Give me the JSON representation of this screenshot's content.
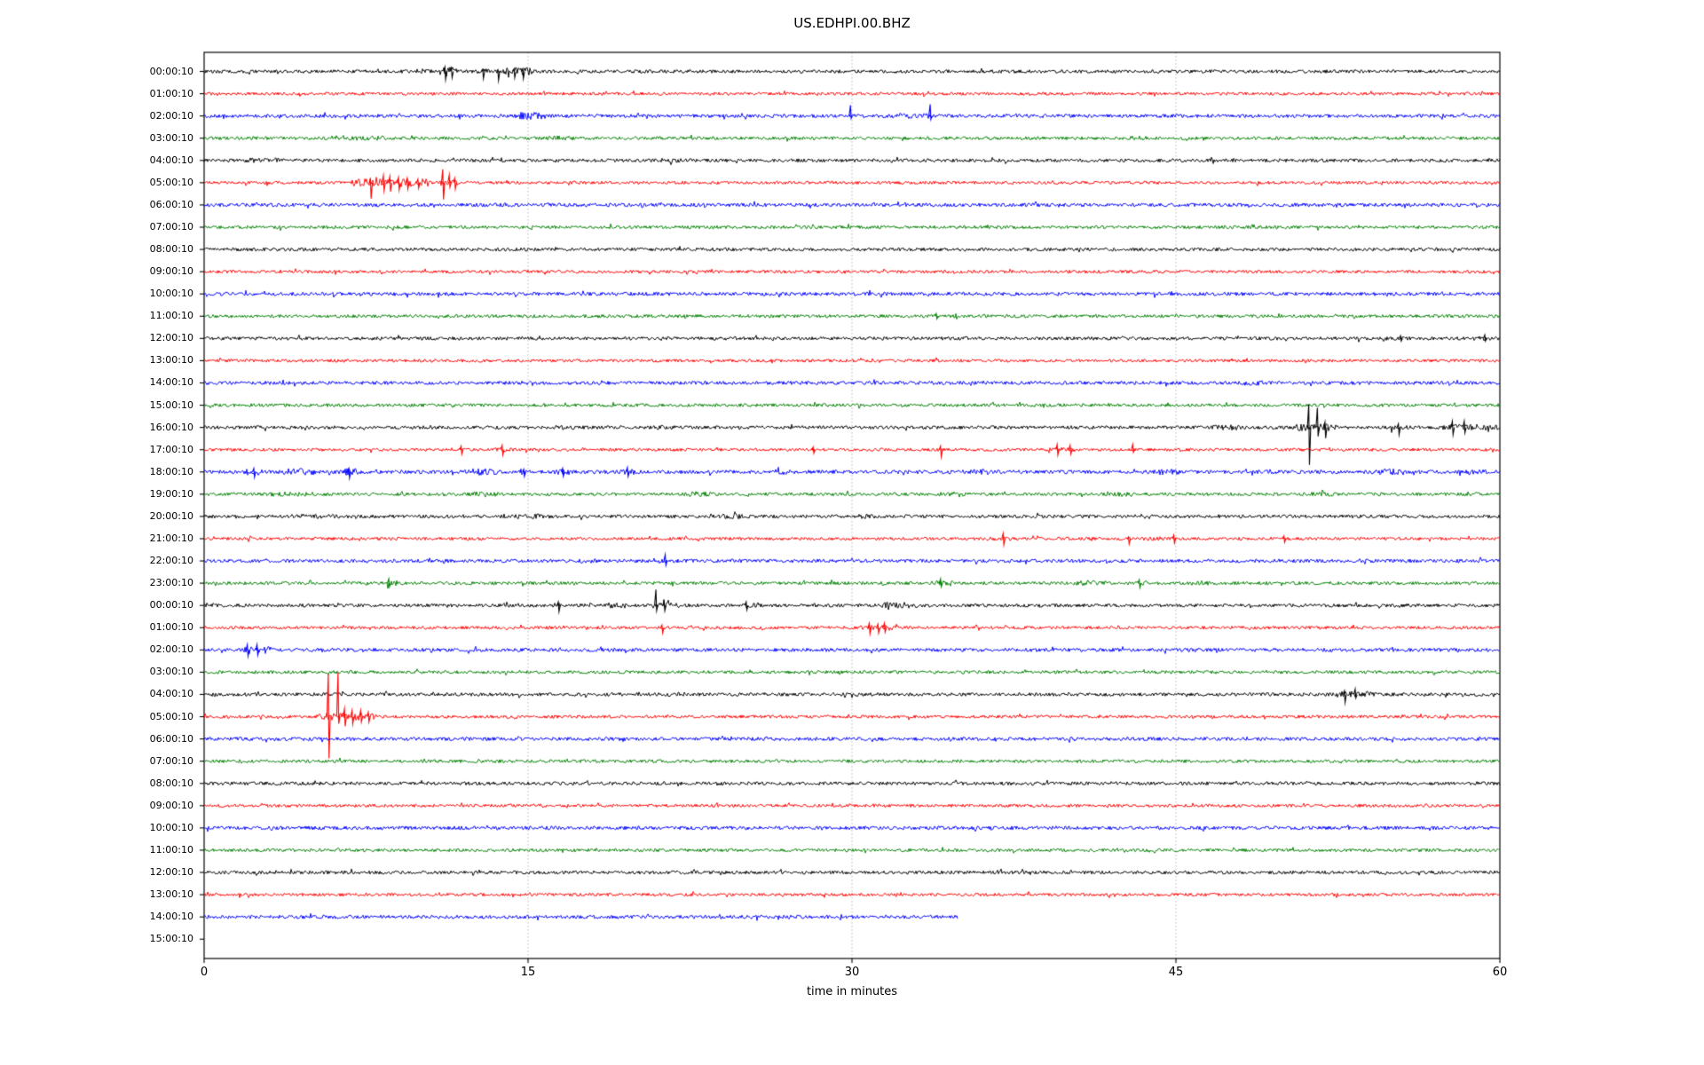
{
  "title": "US.EDHPI.00.BHZ",
  "xlabel": "time in minutes",
  "chart_data": {
    "type": "line",
    "subtype": "seismogram-dayplot",
    "title": "US.EDHPI.00.BHZ",
    "xlabel": "time in minutes",
    "x_range": [
      0,
      60
    ],
    "x_ticks": [
      0,
      15,
      30,
      45,
      60
    ],
    "gridlines_at": [
      15,
      30,
      45
    ],
    "grid_style": "dotted-vertical",
    "legend": "none",
    "color_cycle": [
      "#000000",
      "#ff0000",
      "#0000ff",
      "#008000"
    ],
    "frame_color": "#000000",
    "grid_color": "#b0b0b0",
    "rows": [
      {
        "label": "00:00:10",
        "color": "#000000",
        "noise": 1.9,
        "end": 60,
        "bursts": [
          [
            9.8,
            10.2,
            1.6
          ],
          [
            11.0,
            11.6,
            2.6
          ],
          [
            12.7,
            13.1,
            1.8
          ],
          [
            14.0,
            15.1,
            2.2
          ]
        ],
        "spikes": [
          [
            11.15,
            5,
            9
          ],
          [
            11.45,
            4,
            7
          ],
          [
            12.9,
            2,
            8
          ],
          [
            13.6,
            2,
            10
          ],
          [
            14.35,
            3,
            7
          ],
          [
            14.75,
            3,
            8
          ]
        ]
      },
      {
        "label": "01:00:10",
        "color": "#ff0000",
        "noise": 1.7,
        "end": 60,
        "bursts": [],
        "spikes": []
      },
      {
        "label": "02:00:10",
        "color": "#0000ff",
        "noise": 2.0,
        "end": 60,
        "bursts": [
          [
            14.5,
            15.7,
            2.2
          ],
          [
            31.8,
            33.5,
            1.5
          ]
        ],
        "spikes": [
          [
            29.93,
            12,
            3
          ],
          [
            33.62,
            13,
            4
          ]
        ]
      },
      {
        "label": "03:00:10",
        "color": "#008000",
        "noise": 1.8,
        "end": 60,
        "bursts": [
          [
            6.8,
            8.3,
            1.5
          ],
          [
            16.0,
            17.0,
            1.5
          ],
          [
            43.0,
            43.8,
            1.4
          ],
          [
            52.9,
            53.6,
            1.4
          ]
        ],
        "spikes": []
      },
      {
        "label": "04:00:10",
        "color": "#000000",
        "noise": 1.9,
        "end": 60,
        "bursts": [
          [
            1.9,
            3.4,
            1.5
          ],
          [
            21.0,
            22.0,
            1.3
          ]
        ],
        "spikes": []
      },
      {
        "label": "05:00:10",
        "color": "#ff0000",
        "noise": 1.7,
        "end": 60,
        "bursts": [
          [
            6.9,
            10.4,
            2.6
          ],
          [
            10.9,
            11.7,
            2.0
          ]
        ],
        "spikes": [
          [
            7.7,
            4,
            18
          ],
          [
            8.3,
            8,
            9
          ],
          [
            8.6,
            7,
            10
          ],
          [
            9.0,
            6,
            8
          ],
          [
            9.4,
            5,
            7
          ],
          [
            9.9,
            4,
            6
          ],
          [
            11.05,
            15,
            19
          ],
          [
            11.35,
            9,
            5
          ],
          [
            11.6,
            5,
            7
          ]
        ]
      },
      {
        "label": "06:00:10",
        "color": "#0000ff",
        "noise": 2.0,
        "end": 60,
        "bursts": [],
        "spikes": []
      },
      {
        "label": "07:00:10",
        "color": "#008000",
        "noise": 1.8,
        "end": 60,
        "bursts": [],
        "spikes": []
      },
      {
        "label": "08:00:10",
        "color": "#000000",
        "noise": 1.9,
        "end": 60,
        "bursts": [],
        "spikes": []
      },
      {
        "label": "09:00:10",
        "color": "#ff0000",
        "noise": 1.7,
        "end": 60,
        "bursts": [],
        "spikes": []
      },
      {
        "label": "10:00:10",
        "color": "#0000ff",
        "noise": 2.0,
        "end": 60,
        "bursts": [],
        "spikes": []
      },
      {
        "label": "11:00:10",
        "color": "#008000",
        "noise": 1.8,
        "end": 60,
        "bursts": [],
        "spikes": [
          [
            33.9,
            3,
            3
          ]
        ]
      },
      {
        "label": "12:00:10",
        "color": "#000000",
        "noise": 1.9,
        "end": 60,
        "bursts": [
          [
            58.9,
            59.6,
            1.4
          ]
        ],
        "spikes": [
          [
            55.4,
            3,
            3
          ],
          [
            59.3,
            4,
            3
          ]
        ]
      },
      {
        "label": "13:00:10",
        "color": "#ff0000",
        "noise": 1.7,
        "end": 60,
        "bursts": [],
        "spikes": []
      },
      {
        "label": "14:00:10",
        "color": "#0000ff",
        "noise": 2.0,
        "end": 60,
        "bursts": [
          [
            48.2,
            49.0,
            1.4
          ]
        ],
        "spikes": []
      },
      {
        "label": "15:00:10",
        "color": "#008000",
        "noise": 1.8,
        "end": 60,
        "bursts": [],
        "spikes": []
      },
      {
        "label": "16:00:10",
        "color": "#000000",
        "noise": 1.9,
        "end": 60,
        "bursts": [
          [
            9.8,
            10.5,
            1.4
          ],
          [
            16.3,
            17.1,
            1.4
          ],
          [
            21.0,
            21.7,
            1.4
          ],
          [
            46.8,
            48.1,
            1.6
          ],
          [
            50.6,
            52.3,
            2.2
          ],
          [
            55.0,
            55.6,
            1.7
          ],
          [
            57.5,
            58.7,
            1.9
          ],
          [
            59.3,
            59.9,
            1.7
          ]
        ],
        "spikes": [
          [
            51.15,
            26,
            42
          ],
          [
            51.55,
            22,
            10
          ],
          [
            51.9,
            6,
            12
          ],
          [
            55.3,
            4,
            8
          ],
          [
            57.8,
            7,
            8
          ],
          [
            58.35,
            7,
            6
          ]
        ]
      },
      {
        "label": "17:00:10",
        "color": "#ff0000",
        "noise": 1.7,
        "end": 60,
        "bursts": [
          [
            13.5,
            14.1,
            1.4
          ],
          [
            39.2,
            40.3,
            1.5
          ]
        ],
        "spikes": [
          [
            11.9,
            4,
            5
          ],
          [
            13.8,
            5,
            6
          ],
          [
            28.2,
            3,
            4
          ],
          [
            34.1,
            4,
            8
          ],
          [
            39.5,
            6,
            6
          ],
          [
            40.1,
            5,
            5
          ],
          [
            43.0,
            6,
            3
          ]
        ]
      },
      {
        "label": "18:00:10",
        "color": "#0000ff",
        "noise": 2.1,
        "end": 60,
        "bursts": [
          [
            2.0,
            2.6,
            1.8
          ],
          [
            3.8,
            5.1,
            1.9
          ],
          [
            6.5,
            7.0,
            1.9
          ],
          [
            12.2,
            13.5,
            1.8
          ],
          [
            14.6,
            15.1,
            1.7
          ],
          [
            16.4,
            16.9,
            1.7
          ],
          [
            19.4,
            19.9,
            1.7
          ],
          [
            26.5,
            27.2,
            1.5
          ],
          [
            35.5,
            36.3,
            1.5
          ],
          [
            44.0,
            45.0,
            1.6
          ],
          [
            54.5,
            55.5,
            1.7
          ],
          [
            58.5,
            59.3,
            1.5
          ]
        ],
        "spikes": [
          [
            2.3,
            4,
            6
          ],
          [
            6.7,
            4,
            7
          ],
          [
            14.8,
            3,
            5
          ],
          [
            16.6,
            4,
            5
          ],
          [
            19.6,
            5,
            5
          ]
        ]
      },
      {
        "label": "19:00:10",
        "color": "#008000",
        "noise": 1.8,
        "end": 60,
        "bursts": [
          [
            3.0,
            5.0,
            1.5
          ],
          [
            12.4,
            13.6,
            1.6
          ],
          [
            22.4,
            23.4,
            1.7
          ],
          [
            34.1,
            35.1,
            1.5
          ],
          [
            42.2,
            43.1,
            1.5
          ],
          [
            51.4,
            52.3,
            1.5
          ]
        ],
        "spikes": []
      },
      {
        "label": "20:00:10",
        "color": "#000000",
        "noise": 1.9,
        "end": 60,
        "bursts": [
          [
            3.9,
            6.1,
            1.4
          ],
          [
            13.9,
            16.1,
            1.5
          ],
          [
            23.9,
            25.1,
            1.5
          ],
          [
            30.4,
            31.1,
            1.4
          ],
          [
            43.0,
            43.8,
            1.4
          ]
        ],
        "spikes": []
      },
      {
        "label": "21:00:10",
        "color": "#ff0000",
        "noise": 1.7,
        "end": 60,
        "bursts": [
          [
            36.3,
            37.3,
            1.4
          ],
          [
            43.6,
            44.3,
            1.4
          ]
        ],
        "spikes": [
          [
            37.0,
            6,
            7
          ],
          [
            42.8,
            2,
            6
          ],
          [
            44.9,
            4,
            5
          ],
          [
            50.0,
            3,
            4
          ]
        ]
      },
      {
        "label": "22:00:10",
        "color": "#0000ff",
        "noise": 2.0,
        "end": 60,
        "bursts": [
          [
            17.4,
            18.1,
            1.4
          ]
        ],
        "spikes": [
          [
            21.35,
            7,
            5
          ]
        ]
      },
      {
        "label": "23:00:10",
        "color": "#008000",
        "noise": 1.8,
        "end": 60,
        "bursts": [
          [
            8.3,
            9.0,
            1.7
          ],
          [
            33.8,
            34.6,
            1.7
          ],
          [
            40.3,
            41.7,
            1.5
          ],
          [
            42.9,
            43.6,
            1.5
          ],
          [
            45.7,
            46.4,
            1.4
          ]
        ],
        "spikes": [
          [
            8.55,
            5,
            4
          ],
          [
            34.1,
            5,
            4
          ],
          [
            43.3,
            4,
            5
          ]
        ]
      },
      {
        "label": "00:00:10",
        "color": "#000000",
        "noise": 1.9,
        "end": 60,
        "bursts": [
          [
            16.2,
            16.6,
            1.5
          ],
          [
            18.3,
            19.5,
            1.6
          ],
          [
            20.8,
            21.9,
            1.8
          ],
          [
            24.9,
            25.4,
            1.5
          ],
          [
            31.5,
            33.0,
            1.9
          ]
        ],
        "spikes": [
          [
            16.4,
            4,
            7
          ],
          [
            20.92,
            18,
            6
          ],
          [
            21.3,
            4,
            6
          ],
          [
            25.1,
            4,
            5
          ]
        ]
      },
      {
        "label": "01:00:10",
        "color": "#ff0000",
        "noise": 1.7,
        "end": 60,
        "bursts": [
          [
            30.5,
            32.0,
            1.9
          ]
        ],
        "spikes": [
          [
            21.2,
            3,
            6
          ],
          [
            30.8,
            5,
            7
          ],
          [
            31.2,
            4,
            6
          ],
          [
            31.5,
            5,
            5
          ]
        ]
      },
      {
        "label": "02:00:10",
        "color": "#0000ff",
        "noise": 2.0,
        "end": 60,
        "bursts": [
          [
            1.8,
            3.0,
            2.2
          ]
        ],
        "spikes": [
          [
            2.0,
            6,
            7
          ],
          [
            2.45,
            6,
            6
          ]
        ]
      },
      {
        "label": "03:00:10",
        "color": "#008000",
        "noise": 1.8,
        "end": 60,
        "bursts": [],
        "spikes": []
      },
      {
        "label": "04:00:10",
        "color": "#000000",
        "noise": 1.9,
        "end": 60,
        "bursts": [
          [
            21.5,
            22.3,
            1.3
          ],
          [
            52.5,
            54.0,
            1.9
          ]
        ],
        "spikes": [
          [
            52.8,
            4,
            9
          ],
          [
            53.3,
            6,
            4
          ]
        ]
      },
      {
        "label": "05:00:10",
        "color": "#ff0000",
        "noise": 1.7,
        "end": 60,
        "bursts": [
          [
            5.3,
            7.9,
            2.4
          ],
          [
            14.1,
            14.6,
            1.5
          ]
        ],
        "spikes": [
          [
            5.75,
            48,
            47
          ],
          [
            6.2,
            50,
            8
          ],
          [
            6.5,
            9,
            11
          ],
          [
            6.85,
            7,
            8
          ],
          [
            7.25,
            7,
            6
          ],
          [
            7.6,
            5,
            6
          ]
        ]
      },
      {
        "label": "06:00:10",
        "color": "#0000ff",
        "noise": 2.0,
        "end": 60,
        "bursts": [],
        "spikes": []
      },
      {
        "label": "07:00:10",
        "color": "#008000",
        "noise": 1.8,
        "end": 60,
        "bursts": [],
        "spikes": []
      },
      {
        "label": "08:00:10",
        "color": "#000000",
        "noise": 1.9,
        "end": 60,
        "bursts": [],
        "spikes": []
      },
      {
        "label": "09:00:10",
        "color": "#ff0000",
        "noise": 1.7,
        "end": 60,
        "bursts": [],
        "spikes": []
      },
      {
        "label": "10:00:10",
        "color": "#0000ff",
        "noise": 2.0,
        "end": 60,
        "bursts": [],
        "spikes": []
      },
      {
        "label": "11:00:10",
        "color": "#008000",
        "noise": 1.8,
        "end": 60,
        "bursts": [],
        "spikes": []
      },
      {
        "label": "12:00:10",
        "color": "#000000",
        "noise": 1.9,
        "end": 60,
        "bursts": [],
        "spikes": []
      },
      {
        "label": "13:00:10",
        "color": "#ff0000",
        "noise": 1.7,
        "end": 60,
        "bursts": [],
        "spikes": []
      },
      {
        "label": "14:00:10",
        "color": "#0000ff",
        "noise": 2.0,
        "end": 34.9,
        "bursts": [],
        "spikes": []
      },
      {
        "label": "15:00:10",
        "color": "#008000",
        "noise": 1.8,
        "end": 0,
        "bursts": [],
        "spikes": []
      }
    ]
  }
}
